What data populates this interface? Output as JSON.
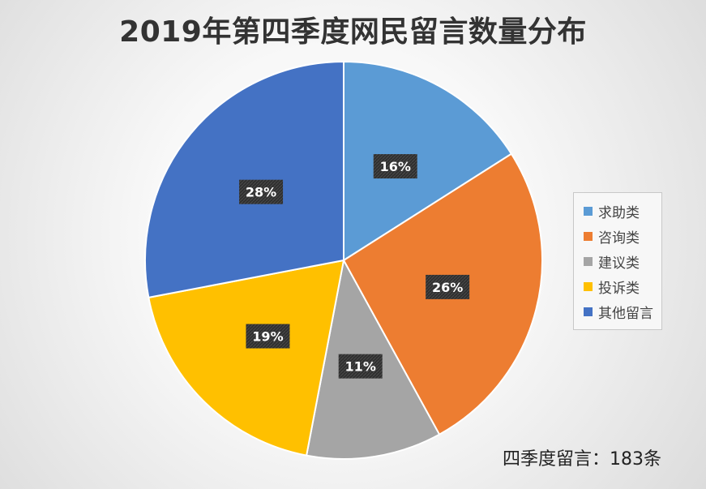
{
  "chart_data": {
    "type": "pie",
    "title": "2019年第四季度网民留言数量分布",
    "categories": [
      "求助类",
      "咨询类",
      "建议类",
      "投诉类",
      "其他留言"
    ],
    "values": [
      16,
      26,
      11,
      19,
      28
    ],
    "data_labels": [
      "16%",
      "26%",
      "11%",
      "19%",
      "28%"
    ],
    "colors": [
      "#5B9BD5",
      "#ED7D31",
      "#A5A5A5",
      "#FFC000",
      "#4472C4"
    ],
    "legend_position": "right",
    "note": "四季度留言：183条"
  }
}
